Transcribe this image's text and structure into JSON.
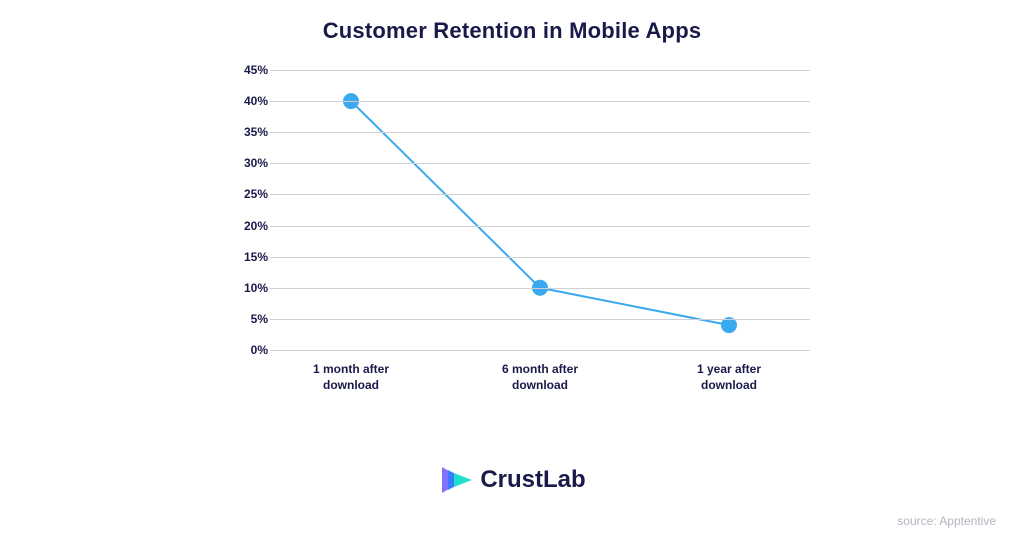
{
  "title": "Customer Retention in Mobile Apps",
  "chart": {
    "type": "line",
    "x_labels": [
      "1 month after\ndownload",
      "6 month after\ndownload",
      "1 year after\ndownload"
    ],
    "y_values": [
      40,
      10,
      4
    ],
    "x_positions_pct": [
      15,
      50,
      85
    ],
    "ylim": [
      0,
      45
    ],
    "ytick_step": 5,
    "ytick_labels": [
      "0%",
      "5%",
      "10%",
      "15%",
      "20%",
      "25%",
      "30%",
      "35%",
      "40%",
      "45%"
    ],
    "line_color": "#3aa9f0",
    "line_width": 2,
    "marker_radius": 8,
    "marker_fill": "#3aa9f0",
    "grid_color": "#d0d0d8",
    "grid_width": 1,
    "axis_label_color": "#1a1a4a",
    "axis_label_fontsize": 12,
    "axis_label_fontweight": 700,
    "background_color": "#ffffff"
  },
  "logo": {
    "brand_primary": "Crust",
    "brand_secondary": "Lab",
    "text_color": "#1a1a4a",
    "icon_colors": {
      "c1": "#6a5cff",
      "c2": "#2e7bff",
      "c3": "#1ee3cf"
    }
  },
  "source": "source: Apptentive",
  "source_color": "#b3b3c0",
  "source_fontsize": 12,
  "title_color": "#1a1a4a",
  "title_fontsize": 22,
  "title_fontweight": 800
}
